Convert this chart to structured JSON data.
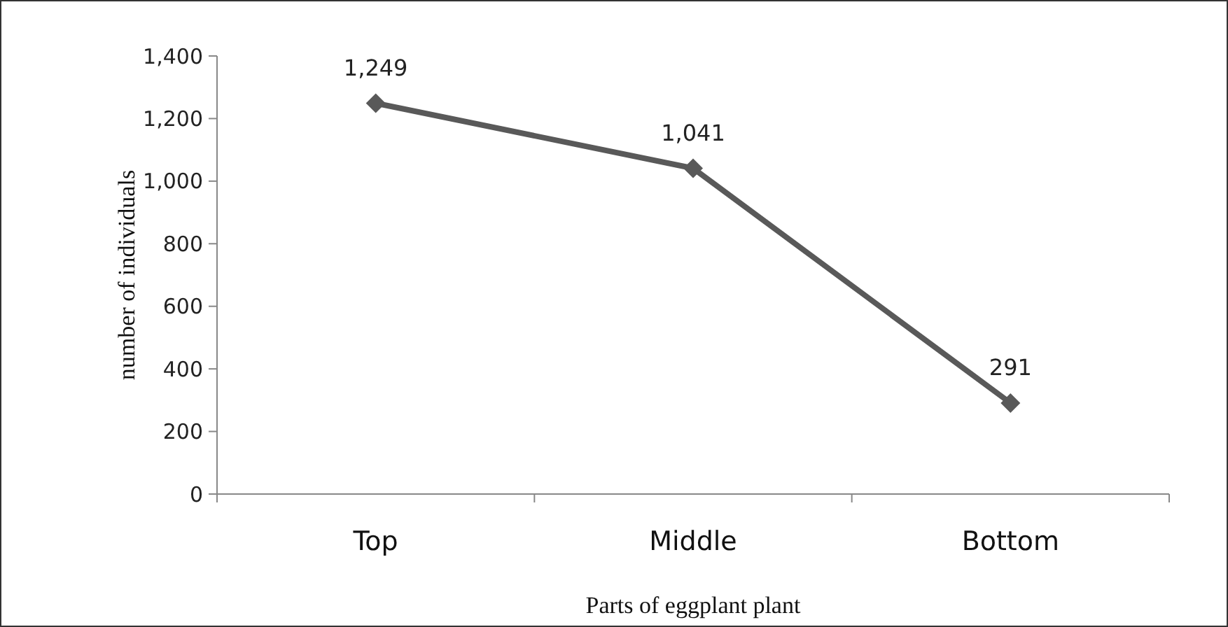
{
  "chart_data": {
    "type": "line",
    "xlabel": "Parts of eggplant plant",
    "ylabel": "number of individuals",
    "categories": [
      "Top",
      "Middle",
      "Bottom"
    ],
    "series": [
      {
        "color": "#595959",
        "values": [
          1249,
          1041,
          291
        ]
      }
    ],
    "value_labels": [
      "1,249",
      "1,041",
      "291"
    ],
    "ylim": [
      0,
      1400
    ],
    "yticks": [
      {
        "value": 0,
        "label": "0"
      },
      {
        "value": 200,
        "label": "200"
      },
      {
        "value": 400,
        "label": "400"
      },
      {
        "value": 600,
        "label": "600"
      },
      {
        "value": 800,
        "label": "800"
      },
      {
        "value": 1000,
        "label": "1,000"
      },
      {
        "value": 1200,
        "label": "1,200"
      },
      {
        "value": 1400,
        "label": "1,400"
      }
    ],
    "marker": "diamond",
    "line_style": "solid",
    "grid": false
  }
}
